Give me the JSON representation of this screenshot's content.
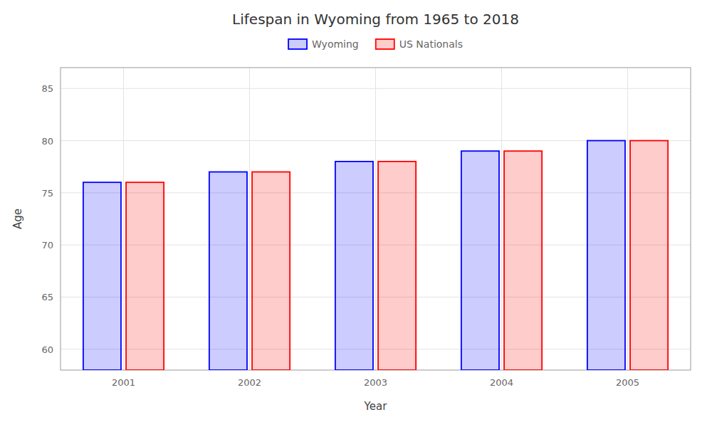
{
  "chart_data": {
    "type": "bar",
    "title": "Lifespan in Wyoming from 1965 to 2018",
    "xlabel": "Year",
    "ylabel": "Age",
    "categories": [
      "2001",
      "2002",
      "2003",
      "2004",
      "2005"
    ],
    "series": [
      {
        "name": "Wyoming",
        "color": "#0000ff",
        "values": [
          76,
          77,
          78,
          79,
          80
        ]
      },
      {
        "name": "US Nationals",
        "color": "#ff0000",
        "values": [
          76,
          77,
          78,
          79,
          80
        ]
      }
    ],
    "ylim": [
      58,
      87
    ],
    "yticks": [
      60,
      65,
      70,
      75,
      80,
      85
    ],
    "grid": true,
    "legend": "top"
  }
}
